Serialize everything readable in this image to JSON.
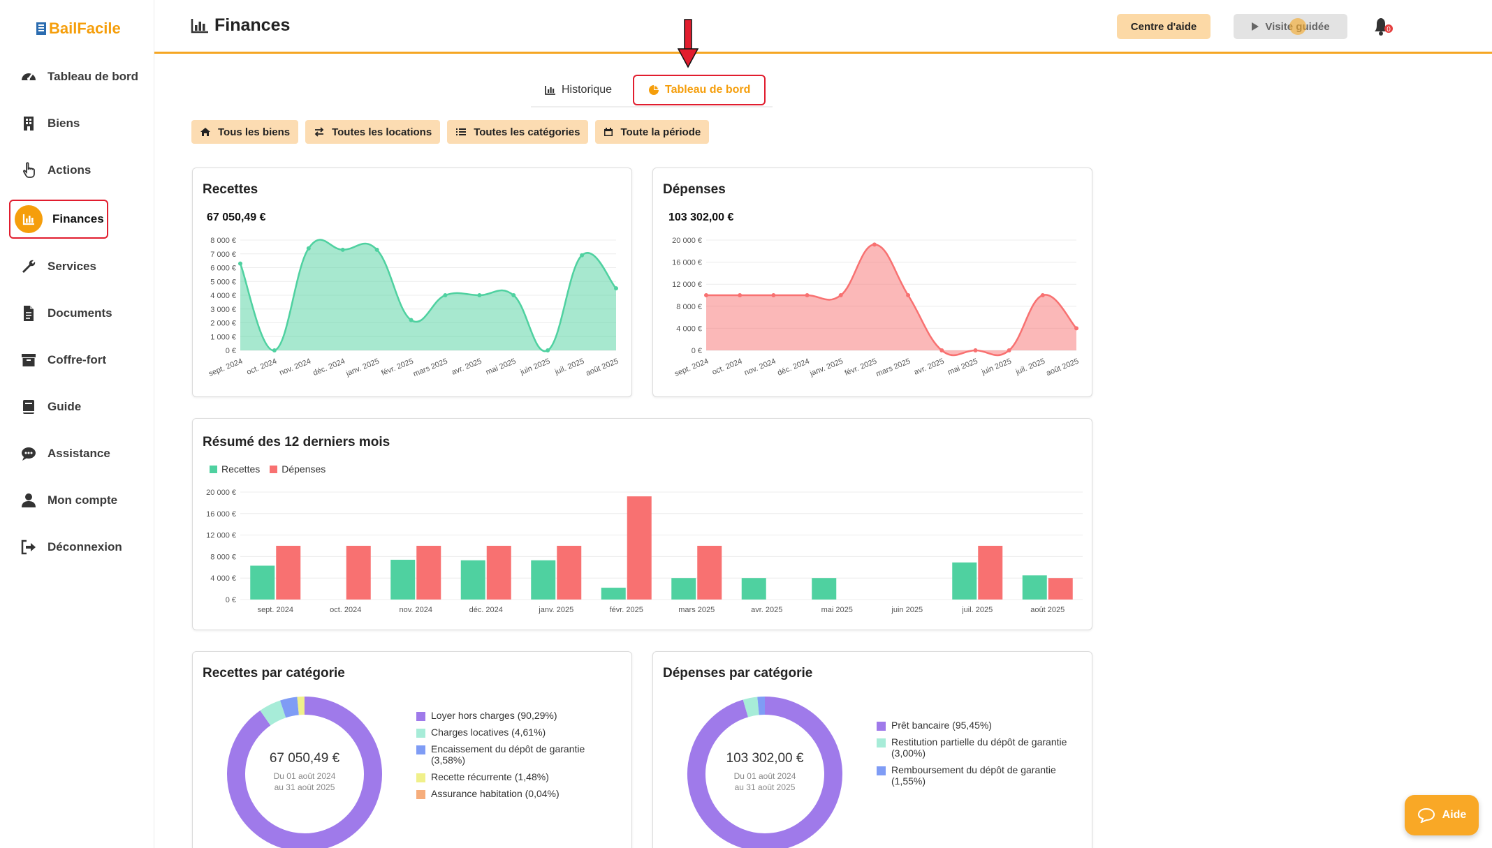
{
  "app": {
    "name": "BailFacile"
  },
  "sidebar": {
    "items": [
      {
        "label": "Tableau de bord",
        "icon": "gauge-icon"
      },
      {
        "label": "Biens",
        "icon": "building-icon"
      },
      {
        "label": "Actions",
        "icon": "hand-pointer-icon"
      },
      {
        "label": "Finances",
        "icon": "chart-icon",
        "active": true
      },
      {
        "label": "Services",
        "icon": "wrench-icon"
      },
      {
        "label": "Documents",
        "icon": "file-icon"
      },
      {
        "label": "Coffre-fort",
        "icon": "archive-icon"
      },
      {
        "label": "Guide",
        "icon": "book-icon"
      },
      {
        "label": "Assistance",
        "icon": "chat-icon"
      },
      {
        "label": "Mon compte",
        "icon": "user-icon"
      },
      {
        "label": "Déconnexion",
        "icon": "logout-icon"
      }
    ]
  },
  "header": {
    "title": "Finances",
    "help_label": "Centre d'aide",
    "tour_label": "Visite guidée",
    "notification_count": "0"
  },
  "tabs": [
    {
      "label": "Historique"
    },
    {
      "label": "Tableau de bord",
      "active": true
    }
  ],
  "filters": [
    {
      "label": "Tous les biens",
      "icon": "home-icon"
    },
    {
      "label": "Toutes les locations",
      "icon": "swap-icon"
    },
    {
      "label": "Toutes les catégories",
      "icon": "list-icon"
    },
    {
      "label": "Toute la période",
      "icon": "calendar-icon"
    }
  ],
  "colors": {
    "accent": "#f59e0b",
    "recettes": "#4fd1a0",
    "depenses": "#f87171",
    "highlight": "#e11d2e"
  },
  "recettes_card": {
    "title": "Recettes",
    "total": "67 050,49 €"
  },
  "depenses_card": {
    "title": "Dépenses",
    "total": "103 302,00 €"
  },
  "summary_card": {
    "title": "Résumé des 12 derniers mois",
    "legend": [
      "Recettes",
      "Dépenses"
    ]
  },
  "recettes_cat_card": {
    "title": "Recettes par catégorie",
    "center_amount": "67 050,49 €",
    "center_from": "Du 01 août 2024",
    "center_to": "au 31 août 2025",
    "legend": [
      {
        "label": "Loyer hors charges (90,29%)",
        "color": "#9f7aea",
        "value": 90.29
      },
      {
        "label": "Charges locatives (4,61%)",
        "color": "#a7ecd8",
        "value": 4.61
      },
      {
        "label": "Encaissement du dépôt de garantie (3,58%)",
        "color": "#7f9cf5",
        "value": 3.58
      },
      {
        "label": "Recette récurrente (1,48%)",
        "color": "#f0f08a",
        "value": 1.48
      },
      {
        "label": "Assurance habitation (0,04%)",
        "color": "#f6ad7b",
        "value": 0.04
      }
    ]
  },
  "depenses_cat_card": {
    "title": "Dépenses par catégorie",
    "center_amount": "103 302,00 €",
    "center_from": "Du 01 août 2024",
    "center_to": "au 31 août 2025",
    "legend": [
      {
        "label": "Prêt bancaire (95,45%)",
        "color": "#9f7aea",
        "value": 95.45
      },
      {
        "label": "Restitution partielle du dépôt de garantie (3,00%)",
        "color": "#a7ecd8",
        "value": 3.0
      },
      {
        "label": "Remboursement du dépôt de garantie (1,55%)",
        "color": "#7f9cf5",
        "value": 1.55
      }
    ]
  },
  "fab": {
    "label": "Aide"
  },
  "chart_data": [
    {
      "type": "area",
      "title": "Recettes",
      "categories": [
        "sept. 2024",
        "oct. 2024",
        "nov. 2024",
        "déc. 2024",
        "janv. 2025",
        "févr. 2025",
        "mars 2025",
        "avr. 2025",
        "mai 2025",
        "juin 2025",
        "juil. 2025",
        "août 2025"
      ],
      "ticks": [
        "0 €",
        "1 000 €",
        "2 000 €",
        "3 000 €",
        "4 000 €",
        "5 000 €",
        "6 000 €",
        "7 000 €",
        "8 000 €"
      ],
      "values": [
        6300,
        0,
        7400,
        7300,
        7300,
        2200,
        4000,
        4000,
        4000,
        0,
        6900,
        4500
      ],
      "ylim": [
        0,
        8000
      ],
      "color": "#4fd1a0"
    },
    {
      "type": "area",
      "title": "Dépenses",
      "categories": [
        "sept. 2024",
        "oct. 2024",
        "nov. 2024",
        "déc. 2024",
        "janv. 2025",
        "févr. 2025",
        "mars 2025",
        "avr. 2025",
        "mai 2025",
        "juin 2025",
        "juil. 2025",
        "août 2025"
      ],
      "ticks": [
        "0 €",
        "4 000 €",
        "8 000 €",
        "12 000 €",
        "16 000 €",
        "20 000 €"
      ],
      "values": [
        10000,
        10000,
        10000,
        10000,
        10000,
        19200,
        10000,
        0,
        0,
        0,
        10000,
        4000
      ],
      "ylim": [
        0,
        20000
      ],
      "color": "#f87171"
    },
    {
      "type": "bar",
      "title": "Résumé des 12 derniers mois",
      "categories": [
        "sept. 2024",
        "oct. 2024",
        "nov. 2024",
        "déc. 2024",
        "janv. 2025",
        "févr. 2025",
        "mars 2025",
        "avr. 2025",
        "mai 2025",
        "juin 2025",
        "juil. 2025",
        "août 2025"
      ],
      "ticks": [
        "0 €",
        "4 000 €",
        "8 000 €",
        "12 000 €",
        "16 000 €",
        "20 000 €"
      ],
      "ylim": [
        0,
        20000
      ],
      "series": [
        {
          "name": "Recettes",
          "color": "#4fd1a0",
          "values": [
            6300,
            0,
            7400,
            7300,
            7300,
            2200,
            4000,
            4000,
            4000,
            0,
            6900,
            4500
          ]
        },
        {
          "name": "Dépenses",
          "color": "#f87171",
          "values": [
            10000,
            10000,
            10000,
            10000,
            10000,
            19200,
            10000,
            0,
            0,
            0,
            10000,
            4000
          ]
        }
      ]
    }
  ]
}
